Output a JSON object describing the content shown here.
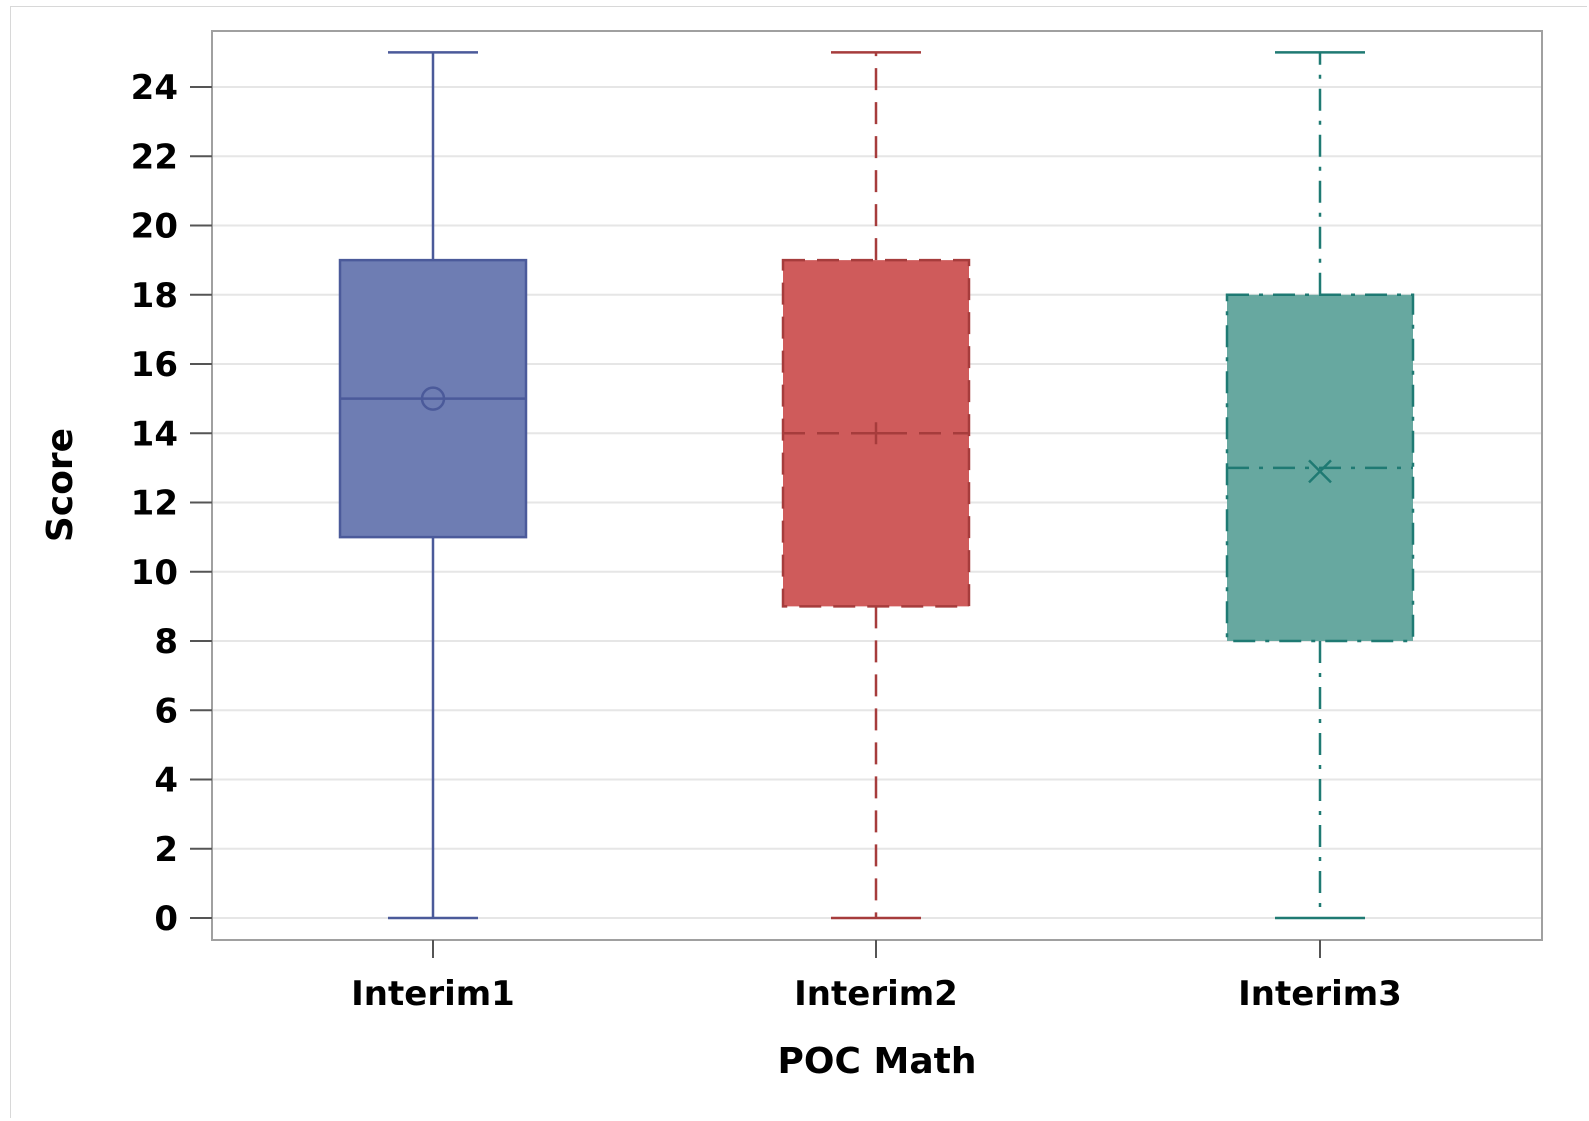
{
  "chart_data": {
    "type": "box",
    "title": "",
    "xlabel": "POC Math",
    "ylabel": "Score",
    "ylim": [
      0,
      25
    ],
    "yticks": [
      0,
      2,
      4,
      6,
      8,
      10,
      12,
      14,
      16,
      18,
      20,
      22,
      24
    ],
    "grid": true,
    "categories": [
      "Interim1",
      "Interim2",
      "Interim3"
    ],
    "boxes": [
      {
        "min": 0,
        "q1": 11,
        "median": 15,
        "q3": 19,
        "max": 25,
        "mean": 15.0,
        "mean_marker": "circle",
        "line_style": "solid",
        "fill": "#6e7db3",
        "stroke": "#4b5a9a"
      },
      {
        "min": 0,
        "q1": 9,
        "median": 14,
        "q3": 19,
        "max": 25,
        "mean": 14.0,
        "mean_marker": "plus",
        "line_style": "dashed",
        "fill": "#cf5b5b",
        "stroke": "#a63c3c"
      },
      {
        "min": 0,
        "q1": 8,
        "median": 13,
        "q3": 18,
        "max": 25,
        "mean": 12.9,
        "mean_marker": "x",
        "line_style": "dashdot",
        "fill": "#67a8a0",
        "stroke": "#1f7a73"
      }
    ]
  }
}
